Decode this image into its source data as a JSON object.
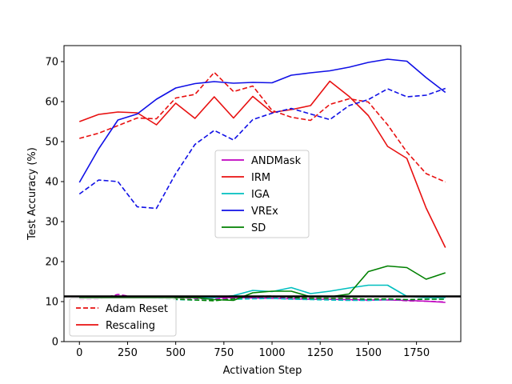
{
  "chart_data": {
    "type": "line",
    "xlabel": "Activation Step",
    "ylabel": "Test Accuracy (%)",
    "xlim": [
      -80,
      1980
    ],
    "ylim": [
      0,
      74
    ],
    "xticks": [
      0,
      250,
      500,
      750,
      1000,
      1250,
      1500,
      1750
    ],
    "yticks": [
      0,
      10,
      20,
      30,
      40,
      50,
      60,
      70
    ],
    "x": [
      0,
      100,
      200,
      300,
      400,
      500,
      600,
      700,
      800,
      900,
      1000,
      1100,
      1200,
      1300,
      1400,
      1500,
      1600,
      1700,
      1800,
      1900
    ],
    "grid": false,
    "reference_line": {
      "y": 11.3,
      "color": "#000000"
    },
    "series": [
      {
        "name": "ANDMask",
        "color": "#bf00bf",
        "solid": [
          10.9,
          10.9,
          11.2,
          11.0,
          11.0,
          11.0,
          11.0,
          11.0,
          11.0,
          10.9,
          10.8,
          10.7,
          10.6,
          10.6,
          10.5,
          10.4,
          10.4,
          10.3,
          10.1,
          9.8
        ],
        "dashed": [
          10.5,
          10.6,
          11.8,
          11.0,
          11.0,
          11.0,
          10.8,
          10.6,
          11.0,
          11.0,
          11.2,
          10.9,
          10.8,
          10.6,
          10.4,
          10.3,
          10.6,
          10.2,
          10.1,
          9.9
        ]
      },
      {
        "name": "IRM",
        "color": "#e81010",
        "solid": [
          55.0,
          56.8,
          57.4,
          57.2,
          54.2,
          59.6,
          55.8,
          61.2,
          55.9,
          61.3,
          57.3,
          58.0,
          59.0,
          65.1,
          61.3,
          56.5,
          48.8,
          45.8,
          33.4,
          23.5
        ],
        "dashed": [
          50.8,
          52.1,
          54.0,
          55.9,
          55.7,
          60.9,
          61.8,
          67.3,
          62.5,
          63.9,
          57.8,
          56.1,
          55.3,
          59.3,
          60.7,
          59.9,
          54.2,
          47.4,
          42.0,
          39.9
        ]
      },
      {
        "name": "IGA",
        "color": "#00bfbf",
        "solid": [
          11.0,
          11.0,
          11.0,
          11.0,
          11.2,
          11.2,
          11.0,
          11.0,
          11.5,
          12.8,
          12.5,
          13.5,
          12.0,
          12.6,
          13.4,
          14.1,
          14.1,
          11.3,
          11.0,
          11.0
        ],
        "dashed": [
          11.0,
          11.0,
          11.0,
          10.9,
          10.8,
          10.5,
          10.4,
          10.3,
          10.6,
          10.7,
          10.8,
          10.6,
          10.5,
          10.4,
          10.3,
          10.3,
          10.5,
          10.5,
          10.6,
          10.6
        ]
      },
      {
        "name": "VREx",
        "color": "#1010e6",
        "solid": [
          39.8,
          48.2,
          55.4,
          56.9,
          60.6,
          63.4,
          64.5,
          65.0,
          64.6,
          64.8,
          64.7,
          66.6,
          67.2,
          67.7,
          68.6,
          69.8,
          70.6,
          70.1,
          66.0,
          62.3
        ],
        "dashed": [
          36.9,
          40.4,
          40.0,
          33.7,
          33.3,
          42.0,
          49.3,
          52.8,
          50.4,
          55.5,
          57.1,
          58.3,
          56.9,
          55.5,
          59.0,
          60.5,
          63.2,
          61.2,
          61.6,
          63.3
        ]
      },
      {
        "name": "SD",
        "color": "#008000",
        "solid": [
          11.0,
          11.0,
          11.0,
          11.0,
          11.0,
          11.0,
          11.0,
          10.5,
          10.3,
          12.2,
          12.6,
          12.6,
          11.2,
          11.2,
          11.9,
          17.5,
          18.9,
          18.5,
          15.6,
          17.2
        ],
        "dashed": [
          11.0,
          11.0,
          11.0,
          11.0,
          11.0,
          10.6,
          10.4,
          10.2,
          10.7,
          11.3,
          11.4,
          11.0,
          10.8,
          10.8,
          10.8,
          10.6,
          10.7,
          10.5,
          10.6,
          10.6
        ]
      }
    ],
    "legend_methods": {
      "placement": "center",
      "entries": [
        "ANDMask",
        "IRM",
        "IGA",
        "VREx",
        "SD"
      ]
    },
    "legend_styles": {
      "placement": "lower-left",
      "entries": [
        {
          "label": "Adam Reset",
          "style": "dashed"
        },
        {
          "label": "Rescaling",
          "style": "solid"
        }
      ]
    }
  }
}
